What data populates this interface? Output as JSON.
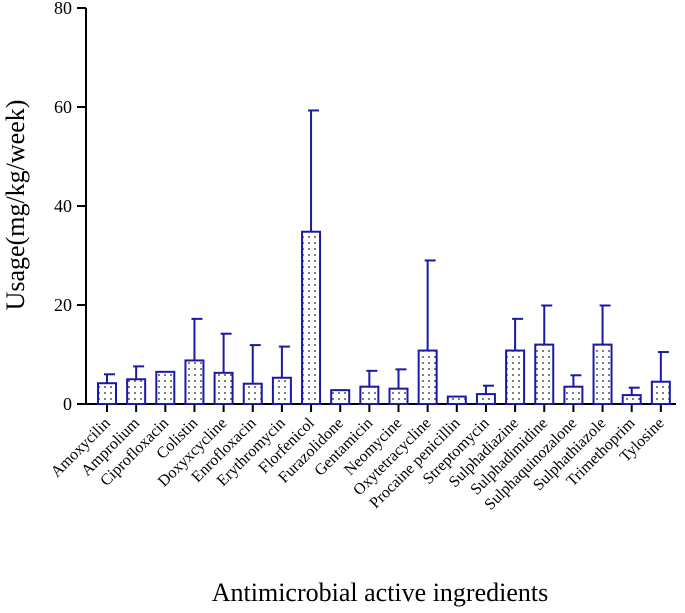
{
  "chart_data": {
    "type": "bar",
    "xlabel": "Antimicrobial active ingredients",
    "ylabel": "Usage(mg/kg/week)",
    "ylim": [
      0,
      80
    ],
    "yticks": [
      0,
      20,
      40,
      60,
      80
    ],
    "grid": false,
    "categories": [
      "Amoxycilin",
      "Amprolium",
      "Ciprofloxacin",
      "Colistin",
      "Doxyxcycline",
      "Enrofloxacin",
      "Erythromycin",
      "Florfenicol",
      "Furazolidone",
      "Gentamicin",
      "Neomycine",
      "Oxytetracycline",
      "Procaine penicillin",
      "Streptomycin",
      "Sulphadiazine",
      "Sulphadimidine",
      "Sulphaquinozalone",
      "Sulphathiazole",
      "Trimethoprim",
      "Tylosine"
    ],
    "values": [
      4.2,
      5.0,
      6.5,
      8.8,
      6.3,
      4.1,
      5.3,
      34.8,
      2.8,
      3.5,
      3.1,
      10.8,
      1.5,
      2.0,
      10.8,
      12.0,
      3.5,
      12.0,
      1.8,
      4.5
    ],
    "error_upper": [
      6.0,
      7.6,
      6.5,
      17.2,
      14.2,
      11.9,
      11.6,
      59.3,
      2.8,
      6.7,
      7.0,
      29.0,
      1.5,
      3.7,
      17.2,
      19.9,
      5.8,
      19.9,
      3.3,
      10.5
    ],
    "bar_color": "#1a1aa6",
    "bar_pattern": "dotted"
  }
}
